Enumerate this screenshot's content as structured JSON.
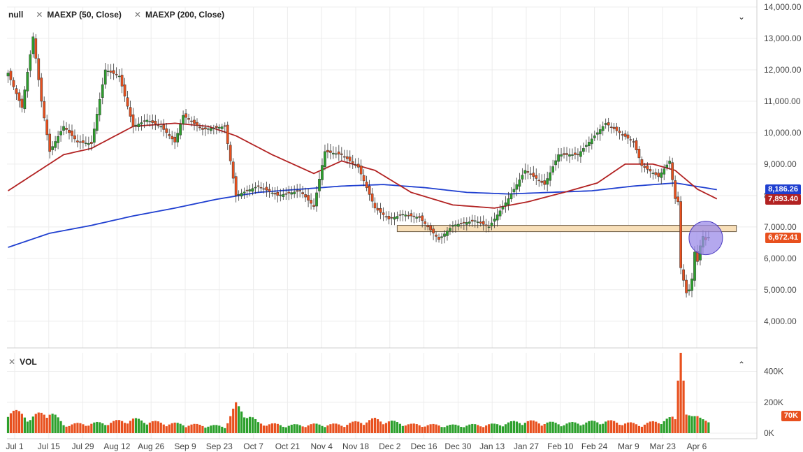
{
  "legend": {
    "symbol": "null",
    "indicators": [
      {
        "label": "MAEXP (50, Close)",
        "color": "#b22222"
      },
      {
        "label": "MAEXP (200, Close)",
        "color": "#1f3fd0"
      }
    ]
  },
  "volume_legend": {
    "label": "VOL"
  },
  "price_tags": {
    "ma200": {
      "text": "8,186.26",
      "color": "#1f3fd0"
    },
    "ma50": {
      "text": "7,893.40",
      "color": "#b22222"
    },
    "last": {
      "text": "6,672.41",
      "color": "#e8501e"
    },
    "volume": {
      "text": "70K",
      "color": "#e8501e"
    }
  },
  "colors": {
    "up": "#2ca02c",
    "down": "#e8501e",
    "support_zone": "#f8dfb8",
    "highlight_circle": "#9b8be8"
  },
  "chart_data": [
    {
      "type": "candlestick",
      "y_axis": {
        "ticks": [
          4000,
          5000,
          6000,
          7000,
          8000,
          9000,
          10000,
          11000,
          12000,
          13000,
          14000
        ],
        "tick_labels": [
          "4,000.00",
          "5,000.00",
          "6,000.00",
          "7,000.00",
          "8,000.00",
          "9,000.00",
          "10,000.00",
          "11,000.00",
          "12,000.00",
          "13,000.00",
          "14,000.00"
        ],
        "ylim": [
          3150,
          14000
        ]
      },
      "x_axis": {
        "tick_labels": [
          "Jul 1",
          "Jul 15",
          "Jul 29",
          "Aug 12",
          "Aug 26",
          "Sep 9",
          "Sep 23",
          "Oct 7",
          "Oct 21",
          "Nov 4",
          "Nov 18",
          "Dec 2",
          "Dec 16",
          "Dec 30",
          "Jan 13",
          "Jan 27",
          "Feb 10",
          "Feb 24",
          "Mar 9",
          "Mar 23",
          "Apr 6"
        ]
      },
      "close_anchors": [
        {
          "d": 0,
          "c": 11900
        },
        {
          "d": 5,
          "c": 10800
        },
        {
          "d": 9,
          "c": 13050
        },
        {
          "d": 12,
          "c": 11000
        },
        {
          "d": 15,
          "c": 9400
        },
        {
          "d": 20,
          "c": 10200
        },
        {
          "d": 25,
          "c": 9700
        },
        {
          "d": 30,
          "c": 9650
        },
        {
          "d": 35,
          "c": 12000
        },
        {
          "d": 40,
          "c": 11800
        },
        {
          "d": 45,
          "c": 10200
        },
        {
          "d": 50,
          "c": 10400
        },
        {
          "d": 55,
          "c": 10200
        },
        {
          "d": 60,
          "c": 9700
        },
        {
          "d": 63,
          "c": 10550
        },
        {
          "d": 70,
          "c": 10100
        },
        {
          "d": 78,
          "c": 10200
        },
        {
          "d": 82,
          "c": 8000
        },
        {
          "d": 90,
          "c": 8300
        },
        {
          "d": 97,
          "c": 8000
        },
        {
          "d": 105,
          "c": 8150
        },
        {
          "d": 110,
          "c": 7650
        },
        {
          "d": 114,
          "c": 9400
        },
        {
          "d": 120,
          "c": 9300
        },
        {
          "d": 126,
          "c": 8900
        },
        {
          "d": 132,
          "c": 7600
        },
        {
          "d": 137,
          "c": 7250
        },
        {
          "d": 142,
          "c": 7400
        },
        {
          "d": 148,
          "c": 7300
        },
        {
          "d": 155,
          "c": 6600
        },
        {
          "d": 160,
          "c": 7050
        },
        {
          "d": 168,
          "c": 7200
        },
        {
          "d": 173,
          "c": 7000
        },
        {
          "d": 180,
          "c": 7900
        },
        {
          "d": 186,
          "c": 8800
        },
        {
          "d": 193,
          "c": 8350
        },
        {
          "d": 198,
          "c": 9300
        },
        {
          "d": 205,
          "c": 9300
        },
        {
          "d": 210,
          "c": 9800
        },
        {
          "d": 215,
          "c": 10300
        },
        {
          "d": 220,
          "c": 10000
        },
        {
          "d": 225,
          "c": 9700
        },
        {
          "d": 228,
          "c": 8950
        },
        {
          "d": 234,
          "c": 8600
        },
        {
          "d": 238,
          "c": 9100
        },
        {
          "d": 240,
          "c": 7900
        },
        {
          "d": 241,
          "c": 7800
        },
        {
          "d": 242,
          "c": 5700
        },
        {
          "d": 243,
          "c": 5300
        },
        {
          "d": 244,
          "c": 4900
        },
        {
          "d": 245,
          "c": 5000
        },
        {
          "d": 246,
          "c": 5350
        },
        {
          "d": 247,
          "c": 6200
        },
        {
          "d": 248,
          "c": 5900
        },
        {
          "d": 249,
          "c": 6400
        },
        {
          "d": 250,
          "c": 6700
        },
        {
          "d": 251,
          "c": 6590
        },
        {
          "d": 252,
          "c": 6672.41
        }
      ],
      "ma50_anchors": [
        {
          "d": 0,
          "v": 8150
        },
        {
          "d": 20,
          "v": 9300
        },
        {
          "d": 30,
          "v": 9500
        },
        {
          "d": 45,
          "v": 10200
        },
        {
          "d": 60,
          "v": 10300
        },
        {
          "d": 72,
          "v": 10200
        },
        {
          "d": 82,
          "v": 9900
        },
        {
          "d": 95,
          "v": 9300
        },
        {
          "d": 110,
          "v": 8700
        },
        {
          "d": 120,
          "v": 9100
        },
        {
          "d": 132,
          "v": 8800
        },
        {
          "d": 145,
          "v": 8100
        },
        {
          "d": 160,
          "v": 7700
        },
        {
          "d": 175,
          "v": 7600
        },
        {
          "d": 187,
          "v": 7800
        },
        {
          "d": 200,
          "v": 8100
        },
        {
          "d": 212,
          "v": 8400
        },
        {
          "d": 222,
          "v": 9000
        },
        {
          "d": 232,
          "v": 9000
        },
        {
          "d": 240,
          "v": 8800
        },
        {
          "d": 248,
          "v": 8200
        },
        {
          "d": 255,
          "v": 7893.4
        }
      ],
      "ma200_anchors": [
        {
          "d": 0,
          "v": 6350
        },
        {
          "d": 15,
          "v": 6800
        },
        {
          "d": 30,
          "v": 7050
        },
        {
          "d": 45,
          "v": 7350
        },
        {
          "d": 60,
          "v": 7600
        },
        {
          "d": 75,
          "v": 7880
        },
        {
          "d": 90,
          "v": 8100
        },
        {
          "d": 105,
          "v": 8200
        },
        {
          "d": 120,
          "v": 8300
        },
        {
          "d": 135,
          "v": 8350
        },
        {
          "d": 150,
          "v": 8250
        },
        {
          "d": 165,
          "v": 8100
        },
        {
          "d": 180,
          "v": 8050
        },
        {
          "d": 195,
          "v": 8100
        },
        {
          "d": 210,
          "v": 8150
        },
        {
          "d": 225,
          "v": 8300
        },
        {
          "d": 240,
          "v": 8400
        },
        {
          "d": 255,
          "v": 8186.26
        }
      ],
      "support_zone": {
        "from": 6850,
        "to": 7050
      },
      "highlight": {
        "d": 251,
        "price": 6650
      },
      "last_price": 6672.41,
      "ma50_last": 7893.4,
      "ma200_last": 8186.26
    },
    {
      "type": "bar",
      "y_axis": {
        "ticks": [
          0,
          200000,
          400000
        ],
        "tick_labels": [
          "0K",
          "200K",
          "400K"
        ],
        "ylim": [
          0,
          520000
        ]
      },
      "volume_anchors": [
        {
          "d": 0,
          "v": 140000
        },
        {
          "d": 8,
          "v": 90000
        },
        {
          "d": 15,
          "v": 130000
        },
        {
          "d": 20,
          "v": 50000
        },
        {
          "d": 35,
          "v": 60000
        },
        {
          "d": 45,
          "v": 80000
        },
        {
          "d": 55,
          "v": 60000
        },
        {
          "d": 65,
          "v": 50000
        },
        {
          "d": 78,
          "v": 40000
        },
        {
          "d": 82,
          "v": 160000
        },
        {
          "d": 90,
          "v": 60000
        },
        {
          "d": 100,
          "v": 45000
        },
        {
          "d": 110,
          "v": 50000
        },
        {
          "d": 120,
          "v": 50000
        },
        {
          "d": 132,
          "v": 80000
        },
        {
          "d": 145,
          "v": 50000
        },
        {
          "d": 160,
          "v": 45000
        },
        {
          "d": 175,
          "v": 50000
        },
        {
          "d": 185,
          "v": 70000
        },
        {
          "d": 200,
          "v": 55000
        },
        {
          "d": 215,
          "v": 70000
        },
        {
          "d": 228,
          "v": 50000
        },
        {
          "d": 240,
          "v": 90000
        },
        {
          "d": 241,
          "v": 340000
        },
        {
          "d": 242,
          "v": 520000
        },
        {
          "d": 243,
          "v": 340000
        },
        {
          "d": 244,
          "v": 120000
        },
        {
          "d": 246,
          "v": 110000
        },
        {
          "d": 248,
          "v": 110000
        },
        {
          "d": 252,
          "v": 70000
        }
      ],
      "last_volume": 70000
    }
  ]
}
